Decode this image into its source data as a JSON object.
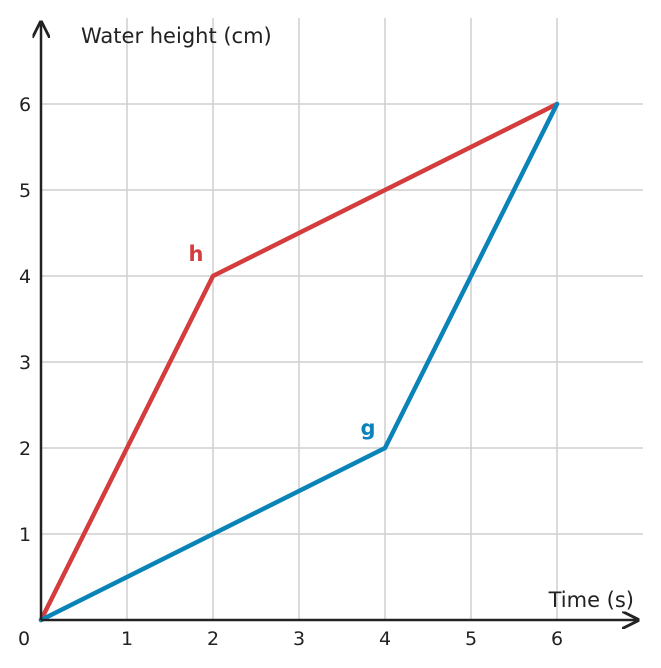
{
  "chart_data": {
    "type": "line",
    "xlabel": "Time (s)",
    "ylabel": "Water height (cm)",
    "xlim": [
      0,
      7
    ],
    "ylim": [
      0,
      7
    ],
    "x_ticks": [
      1,
      2,
      3,
      4,
      5,
      6
    ],
    "y_ticks": [
      1,
      2,
      3,
      4,
      5,
      6
    ],
    "origin_label": "0",
    "grid": true,
    "series": [
      {
        "name": "h",
        "color": "#d43d3d",
        "x": [
          0,
          2,
          6
        ],
        "y": [
          0,
          4,
          6
        ]
      },
      {
        "name": "g",
        "color": "#0a84b8",
        "x": [
          0,
          4,
          6
        ],
        "y": [
          0,
          2,
          6
        ]
      }
    ]
  }
}
